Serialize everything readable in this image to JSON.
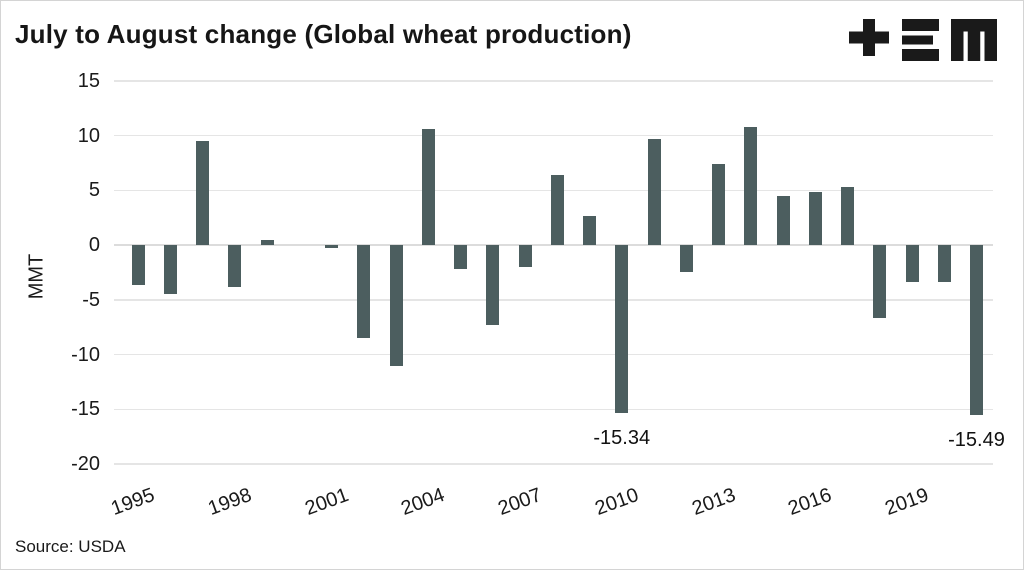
{
  "header": {
    "title": "July to August change (Global wheat production)"
  },
  "logo": {
    "name": "plus-three-bars-m-logo",
    "color": "#1a1a1a"
  },
  "footer": {
    "source": "Source: USDA"
  },
  "colors": {
    "bar": "#4c5e5f",
    "grid": "#e5e5e5",
    "zero_line": "#dcdcdc",
    "text": "#161616",
    "border": "#d4d4d4",
    "background": "#ffffff"
  },
  "chart_data": {
    "type": "bar",
    "title": "July to August change (Global wheat production)",
    "xlabel": "",
    "ylabel": "MMT",
    "ylim": [
      -20,
      15
    ],
    "yticks": [
      15,
      10,
      5,
      0,
      -5,
      -10,
      -15,
      -20
    ],
    "xtick_labels": [
      "1995",
      "1998",
      "2001",
      "2004",
      "2007",
      "2010",
      "2013",
      "2016",
      "2019"
    ],
    "grid": true,
    "legend": false,
    "bar_color": "#4c5e5f",
    "categories": [
      1995,
      1996,
      1997,
      1998,
      1999,
      2000,
      2001,
      2002,
      2003,
      2004,
      2005,
      2006,
      2007,
      2008,
      2009,
      2010,
      2011,
      2012,
      2013,
      2014,
      2015,
      2016,
      2017,
      2018,
      2019,
      2020,
      2021
    ],
    "values": [
      -3.6,
      -4.5,
      9.5,
      -3.8,
      0.5,
      0.0,
      -0.3,
      -8.5,
      -11.0,
      10.6,
      -2.2,
      -7.3,
      -2.0,
      6.4,
      2.7,
      -15.34,
      9.7,
      -2.5,
      7.4,
      10.8,
      4.5,
      4.9,
      5.3,
      -6.7,
      -3.4,
      -3.4,
      -15.49
    ],
    "annotations": [
      {
        "x": 2010,
        "label": "-15.34"
      },
      {
        "x": 2021,
        "label": "-15.49"
      }
    ],
    "source": "Source: USDA"
  }
}
